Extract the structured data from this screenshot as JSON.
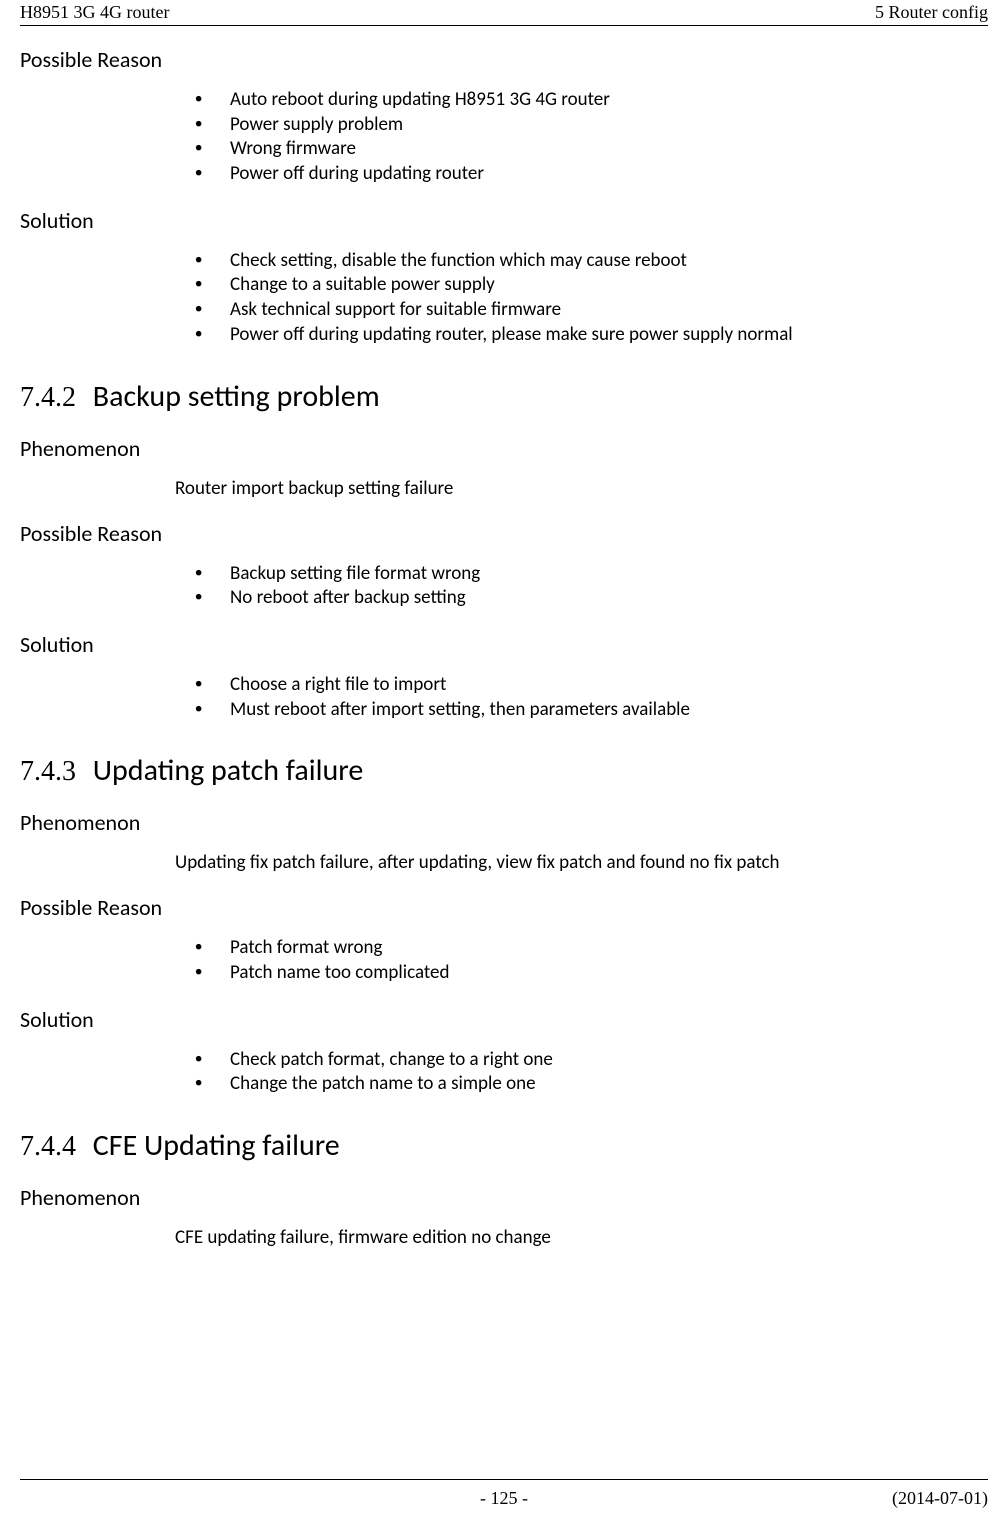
{
  "header": {
    "left": "H8951 3G 4G router",
    "right": "5  Router config"
  },
  "sections": {
    "s1_title": "Possible Reason",
    "s1_items": {
      "i0": "Auto reboot during updating H8951 3G 4G router",
      "i1": "Power supply problem",
      "i2": "Wrong firmware",
      "i3": "Power off during updating router"
    },
    "s2_title": "Solution",
    "s2_items": {
      "i0": "Check setting, disable the function which may cause reboot",
      "i1": "Change to a suitable power supply",
      "i2": "Ask technical support for suitable firmware",
      "i3": "Power off during updating router, please make sure power supply normal"
    },
    "sub742_num": "7.4.2",
    "sub742_title": "Backup setting problem",
    "s3_title": "Phenomenon",
    "s3_text": "Router import backup setting failure",
    "s4_title": "Possible Reason",
    "s4_items": {
      "i0": "Backup setting file format wrong",
      "i1": "No reboot after backup setting"
    },
    "s5_title": "Solution",
    "s5_items": {
      "i0": "Choose a right file to import",
      "i1": "Must reboot after import setting, then parameters available"
    },
    "sub743_num": "7.4.3",
    "sub743_title": "Updating patch failure",
    "s6_title": "Phenomenon",
    "s6_text": "Updating fix patch failure, after updating, view fix patch and found no fix patch",
    "s7_title": "Possible Reason",
    "s7_items": {
      "i0": "Patch format wrong",
      "i1": "Patch name too complicated"
    },
    "s8_title": "Solution",
    "s8_items": {
      "i0": "Check patch format, change to a right one",
      "i1": "Change the patch name to a simple one"
    },
    "sub744_num": "7.4.4",
    "sub744_title": "CFE Updating failure",
    "s9_title": "Phenomenon",
    "s9_text": "CFE updating failure, firmware edition no change"
  },
  "footer": {
    "page": "- 125 -",
    "date": "(2014-07-01)"
  }
}
